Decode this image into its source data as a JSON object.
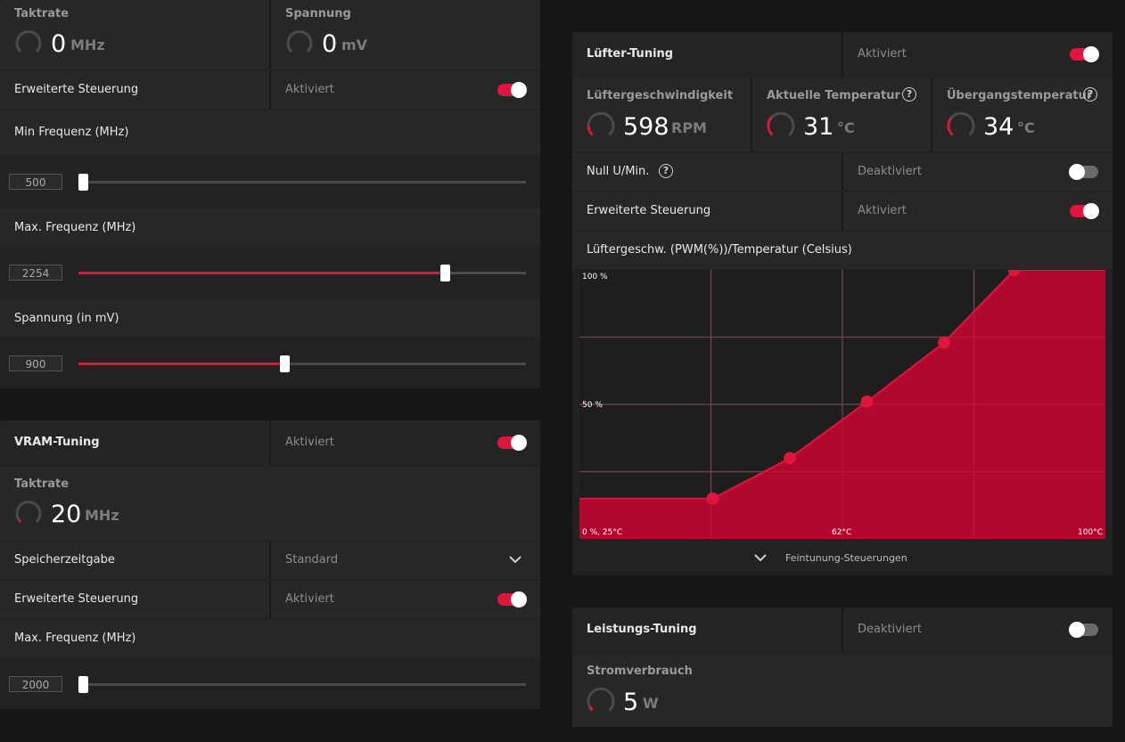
{
  "gpu": {
    "clock_label": "Taktrate",
    "clock_value": "0",
    "clock_unit": "MHz",
    "voltage_label": "Spannung",
    "voltage_value": "0",
    "voltage_unit": "mV",
    "advanced_label": "Erweiterte Steuerung",
    "advanced_state": "Aktiviert",
    "min_freq_label": "Min Frequenz (MHz)",
    "min_freq_value": "500",
    "min_freq_fraction": 0.0,
    "max_freq_label": "Max. Frequenz (MHz)",
    "max_freq_value": "2254",
    "max_freq_fraction": 0.826,
    "voltage_setting_label": "Spannung (in mV)",
    "voltage_setting_value": "900",
    "voltage_setting_fraction": 0.46
  },
  "vram": {
    "title": "VRAM-Tuning",
    "state": "Aktiviert",
    "clock_label": "Taktrate",
    "clock_value": "20",
    "clock_unit": "MHz",
    "timing_label": "Speicherzeitgabe",
    "timing_value": "Standard",
    "advanced_label": "Erweiterte Steuerung",
    "advanced_state": "Aktiviert",
    "max_freq_label": "Max. Frequenz (MHz)",
    "max_freq_value": "2000",
    "max_freq_fraction": 0.0
  },
  "fan": {
    "title": "Lüfter-Tuning",
    "state": "Aktiviert",
    "speed_label": "Lüftergeschwindigkeit",
    "speed_value": "598",
    "speed_unit": "RPM",
    "temp_label": "Aktuelle Temperatur",
    "temp_value": "31",
    "temp_unit": "°C",
    "junction_label": "Übergangstemperatur",
    "junction_value": "34",
    "junction_unit": "°C",
    "zero_rpm_label": "Null U/Min.",
    "zero_rpm_state": "Deaktiviert",
    "advanced_label": "Erweiterte Steuerung",
    "advanced_state": "Aktiviert",
    "curve_title": "Lüftergeschw. (PWM(%))/Temperatur (Celsius)",
    "fine_tuning_label": "Feintunung-Steuerungen",
    "help_glyph": "?"
  },
  "power": {
    "title": "Leistungs-Tuning",
    "state": "Deaktiviert",
    "consumption_label": "Stromverbrauch",
    "consumption_value": "5",
    "consumption_unit": "W"
  },
  "colors": {
    "accent": "#e0143c",
    "panel": "#222222",
    "row": "#272727",
    "background": "#161616"
  },
  "chart_data": {
    "type": "area",
    "title": "Lüftergeschw. (PWM(%))/Temperatur (Celsius)",
    "xlabel": "Temperatur (Celsius)",
    "ylabel": "PWM (%)",
    "xlim": [
      25,
      100
    ],
    "ylim": [
      0,
      100
    ],
    "x_tick_labels": [
      "0 %, 25°C",
      "62°C",
      "100°C"
    ],
    "y_tick_labels": [
      "100 %",
      "50 %"
    ],
    "points": [
      {
        "x": 25,
        "y": 15
      },
      {
        "x": 44,
        "y": 15
      },
      {
        "x": 55,
        "y": 30
      },
      {
        "x": 66,
        "y": 51
      },
      {
        "x": 77,
        "y": 73
      },
      {
        "x": 87,
        "y": 100
      },
      {
        "x": 100,
        "y": 100
      }
    ],
    "control_points": [
      1,
      2,
      3,
      4,
      5
    ],
    "grid": true
  }
}
